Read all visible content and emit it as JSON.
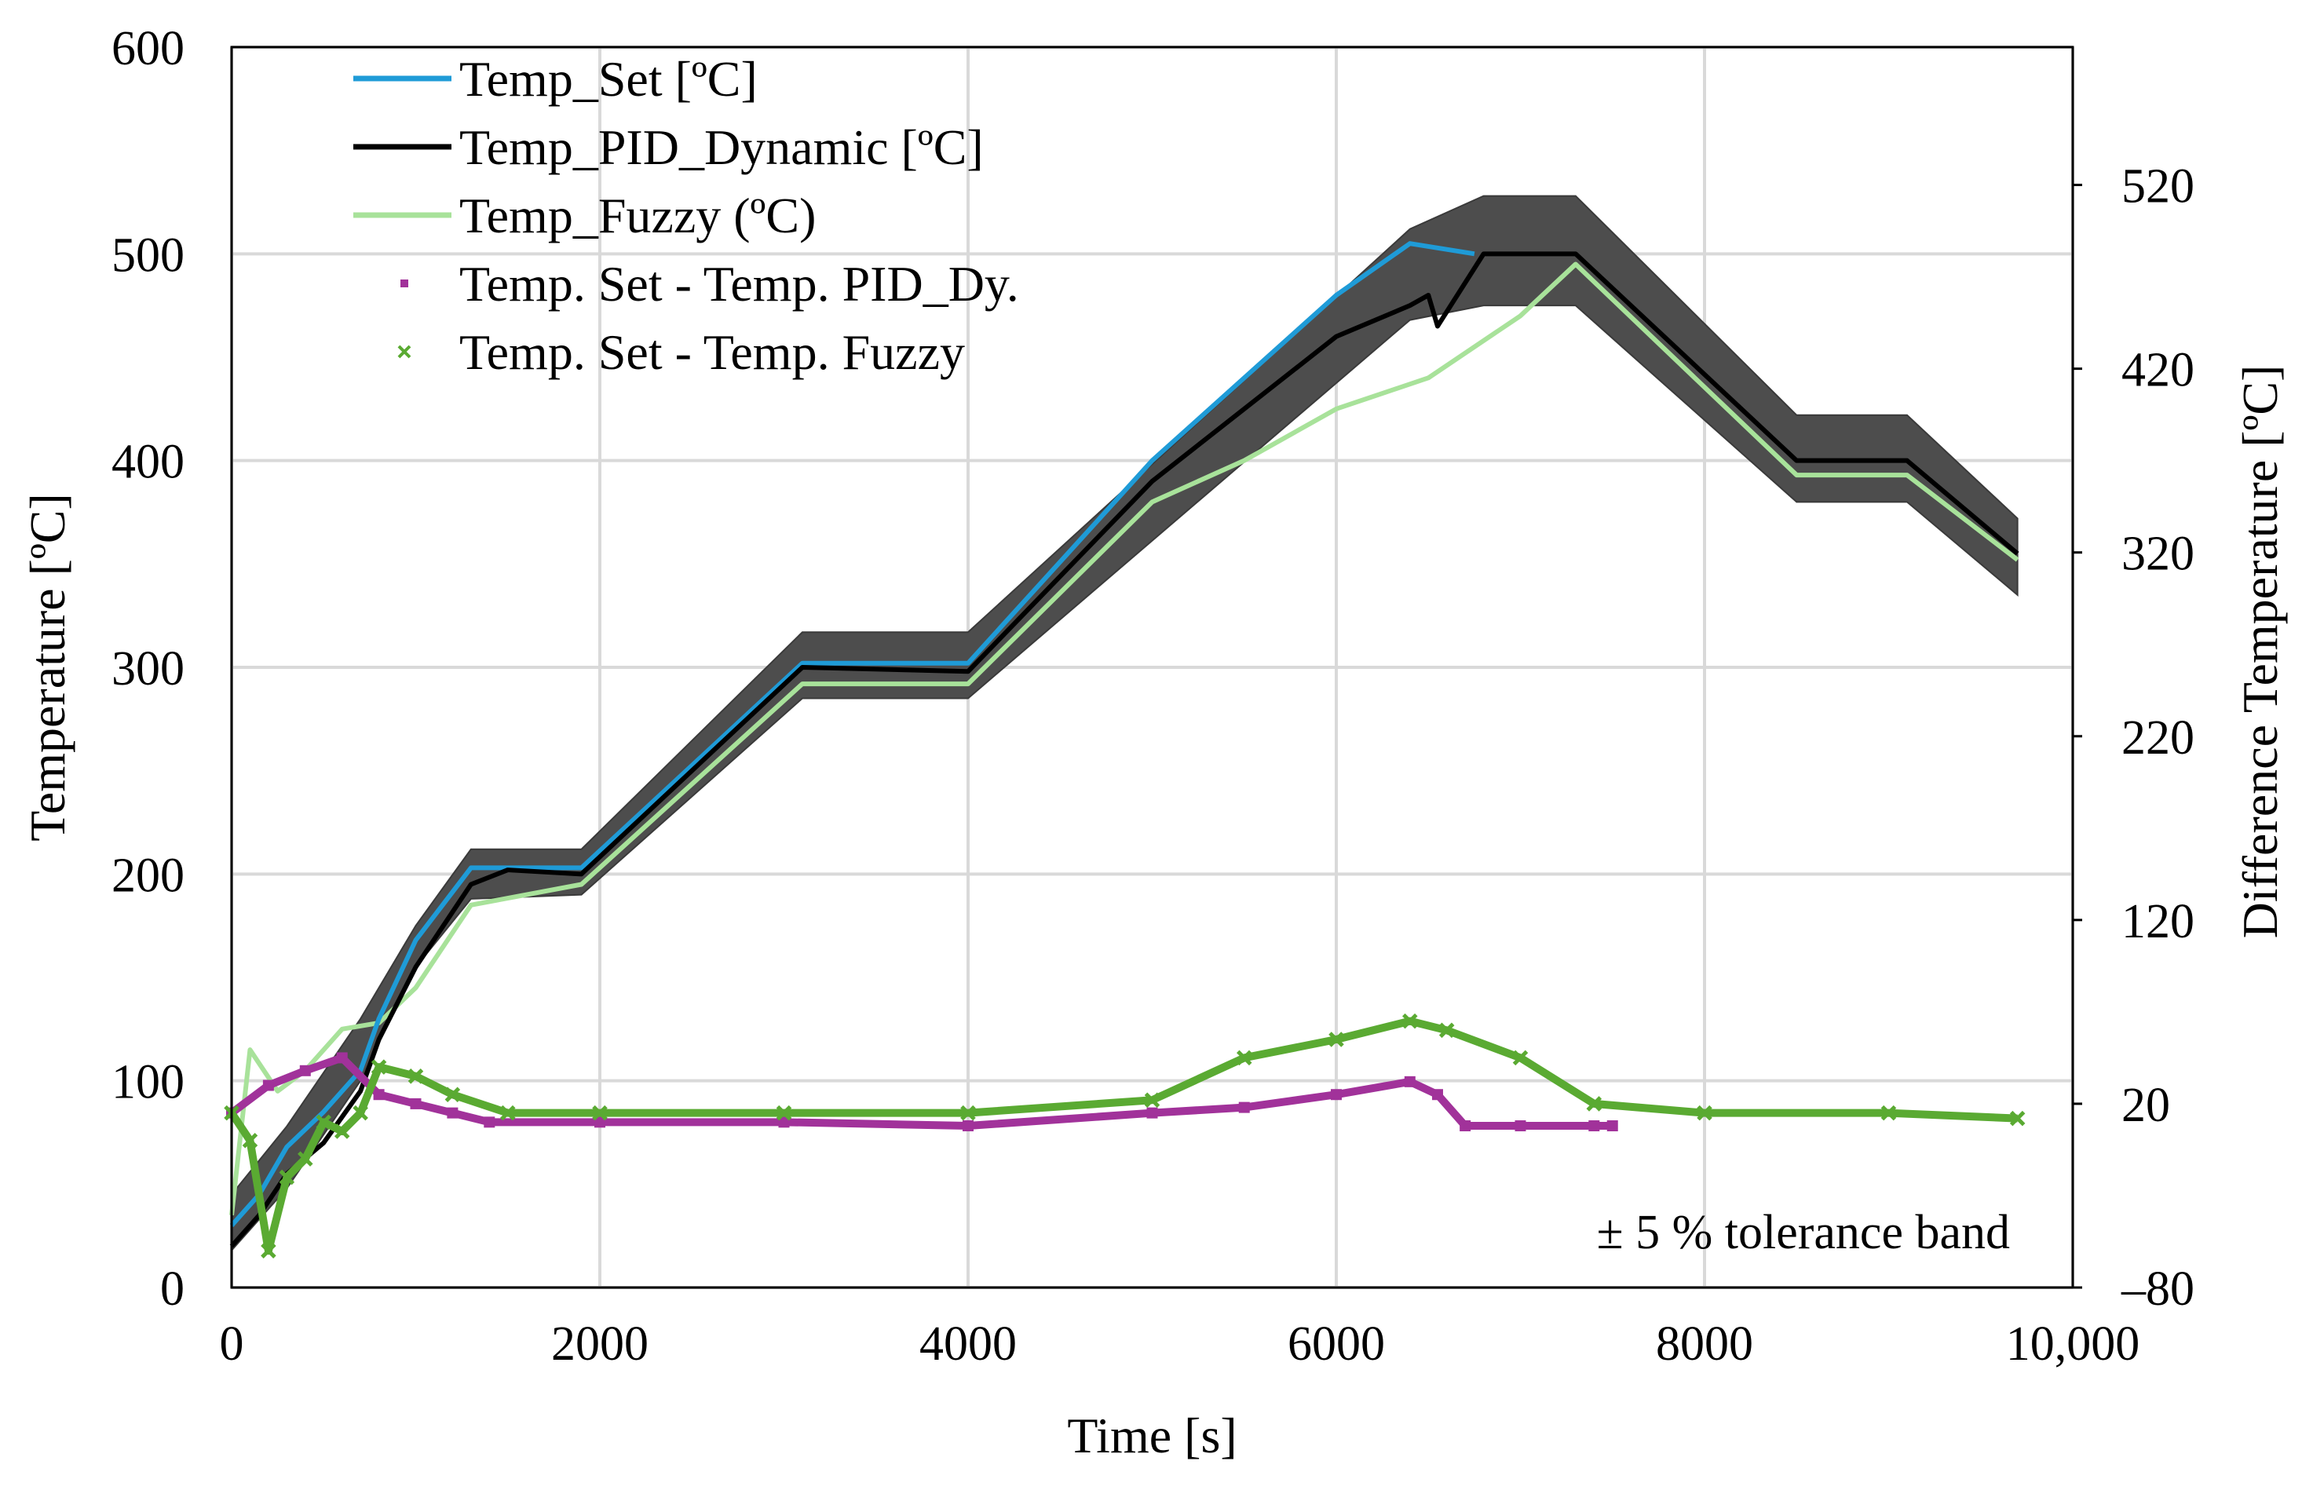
{
  "chart_data": {
    "type": "line",
    "xlabel": "Time [s]",
    "ylabel": "Temperature [ºC]",
    "y2label": "Difference Temperature [ºC]",
    "xlim": [
      0,
      10000
    ],
    "ylim": [
      0,
      600
    ],
    "y2lim": [
      -80,
      595
    ],
    "x_ticks": [
      0,
      2000,
      4000,
      6000,
      8000,
      10000
    ],
    "x_tick_labels": [
      "0",
      "2000",
      "4000",
      "6000",
      "8000",
      "10,000"
    ],
    "y_ticks": [
      0,
      100,
      200,
      300,
      400,
      500,
      600
    ],
    "y2_ticks": [
      -80,
      20,
      120,
      220,
      320,
      420,
      520
    ],
    "y2_tick_labels": [
      "‒80",
      "20",
      "120",
      "220",
      "320",
      "420",
      "520"
    ],
    "grid": true,
    "legend_position": "top-left",
    "annotation": "± 5 %  tolerance band",
    "tolerance_band": {
      "x": [
        0,
        300,
        700,
        1000,
        1300,
        1900,
        3100,
        4000,
        6400,
        6800,
        7300,
        8500,
        9100,
        9700
      ],
      "lower": [
        18,
        48,
        100,
        155,
        188,
        190,
        285,
        285,
        468,
        475,
        475,
        380,
        380,
        335
      ],
      "upper": [
        45,
        78,
        130,
        175,
        212,
        212,
        317,
        317,
        512,
        528,
        528,
        422,
        422,
        372
      ]
    },
    "series": [
      {
        "name": "Temp_Set [ºC]",
        "axis": "left",
        "color": "#1f9bd7",
        "x": [
          0,
          150,
          300,
          500,
          700,
          800,
          1000,
          1300,
          1900,
          3100,
          4000,
          5000,
          6000,
          6400,
          6750
        ],
        "values": [
          30,
          45,
          68,
          85,
          105,
          130,
          168,
          203,
          203,
          302,
          302,
          400,
          480,
          505,
          500
        ]
      },
      {
        "name": "Temp_PID_Dynamic [ºC]",
        "axis": "left",
        "color": "#000000",
        "x": [
          0,
          150,
          300,
          500,
          700,
          800,
          1000,
          1300,
          1500,
          1900,
          3100,
          4000,
          5000,
          6000,
          6400,
          6500,
          6550,
          6800,
          7300,
          8500,
          9100,
          9700
        ],
        "values": [
          20,
          35,
          55,
          70,
          95,
          120,
          155,
          195,
          202,
          200,
          300,
          298,
          390,
          460,
          475,
          480,
          465,
          500,
          500,
          400,
          400,
          355
        ]
      },
      {
        "name": "Temp_Fuzzy (ºC)",
        "axis": "left",
        "color": "#a8e29a",
        "x": [
          0,
          100,
          250,
          400,
          600,
          800,
          1000,
          1300,
          1900,
          3100,
          4000,
          5000,
          5500,
          6000,
          6500,
          7000,
          7300,
          8500,
          9100,
          9700
        ],
        "values": [
          35,
          115,
          95,
          105,
          125,
          128,
          145,
          185,
          195,
          292,
          292,
          380,
          400,
          425,
          440,
          470,
          495,
          393,
          393,
          352
        ]
      },
      {
        "name": "Temp. Set - Temp. PID_Dy.",
        "axis": "right",
        "color": "#a1329a",
        "marker": "square",
        "x": [
          0,
          200,
          400,
          600,
          800,
          1000,
          1200,
          1400,
          2000,
          3000,
          4000,
          5000,
          5500,
          6000,
          6400,
          6550,
          6700,
          7000,
          7400,
          7500
        ],
        "values": [
          15,
          30,
          38,
          45,
          25,
          20,
          15,
          10,
          10,
          10,
          8,
          15,
          18,
          25,
          32,
          25,
          8,
          8,
          8,
          8
        ]
      },
      {
        "name": "Temp. Set - Temp. Fuzzy",
        "axis": "right",
        "color": "#5aaa32",
        "marker": "x",
        "x": [
          0,
          100,
          200,
          300,
          400,
          500,
          600,
          700,
          800,
          1000,
          1200,
          1500,
          2000,
          3000,
          4000,
          5000,
          5500,
          6000,
          6400,
          6600,
          7000,
          7400,
          8000,
          9000,
          9700
        ],
        "values": [
          15,
          0,
          -60,
          -20,
          -10,
          10,
          5,
          15,
          40,
          35,
          25,
          15,
          15,
          15,
          15,
          22,
          45,
          55,
          65,
          60,
          45,
          20,
          15,
          15,
          12
        ]
      }
    ]
  }
}
